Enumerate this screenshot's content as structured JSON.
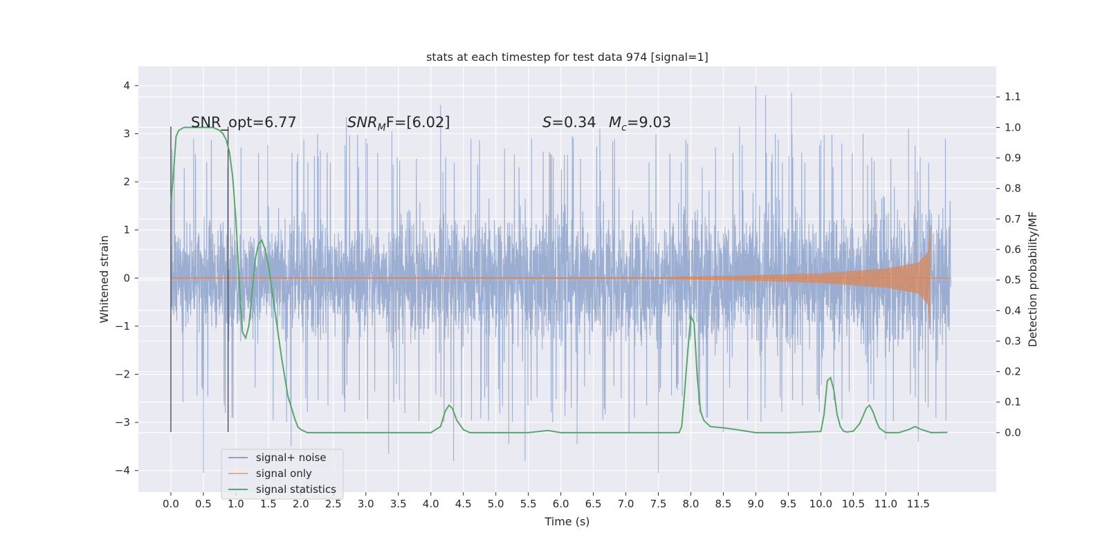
{
  "chart_data": {
    "type": "line",
    "title": "stats at each timestep for test data 974 [signal=1]",
    "xlabel": "Time (s)",
    "ylabel_left": "Whitened strain",
    "ylabel_right": "Detection probability/MF",
    "xlim": [
      -0.5,
      12.7
    ],
    "ylim_left": [
      -4.45,
      4.4
    ],
    "ylim_right": [
      -0.195,
      1.2
    ],
    "xticks": [
      0.0,
      0.5,
      1.0,
      1.5,
      2.0,
      2.5,
      3.0,
      3.5,
      4.0,
      4.5,
      5.0,
      5.5,
      6.0,
      6.5,
      7.0,
      7.5,
      8.0,
      8.5,
      9.0,
      9.5,
      10.0,
      10.5,
      11.0,
      11.5
    ],
    "xtick_labels": [
      "0.0",
      "0.5",
      "1.0",
      "1.5",
      "2.0",
      "2.5",
      "3.0",
      "3.5",
      "4.0",
      "4.5",
      "5.0",
      "5.5",
      "6.0",
      "6.5",
      "7.0",
      "7.5",
      "8.0",
      "8.5",
      "9.0",
      "9.5",
      "10.0",
      "10.5",
      "11.0",
      "11.5"
    ],
    "yticks_left": [
      -4,
      -3,
      -2,
      -1,
      0,
      1,
      2,
      3,
      4
    ],
    "ytick_labels_left": [
      "−4",
      "−3",
      "−2",
      "−1",
      "0",
      "1",
      "2",
      "3",
      "4"
    ],
    "yticks_right": [
      0.0,
      0.1,
      0.2,
      0.3,
      0.4,
      0.5,
      0.6,
      0.7,
      0.8,
      0.9,
      1.0,
      1.1
    ],
    "ytick_labels_right": [
      "0.0",
      "0.1",
      "0.2",
      "0.3",
      "0.4",
      "0.5",
      "0.6",
      "0.7",
      "0.8",
      "0.9",
      "1.0",
      "1.1"
    ],
    "grid": true,
    "legend_position": "lower-left",
    "annotations": {
      "snr_opt": "SNR_opt=6.77",
      "snr_mf_main": "SNR",
      "snr_mf_sub": "M",
      "snr_mf_rest": "F=[6.02]",
      "s_label": "S",
      "s_value": "=0.34",
      "mc_label": "M",
      "mc_sub": "c",
      "mc_value": "=9.03"
    },
    "vlines": [
      {
        "x": 0.0,
        "y_range": [
          -3.2,
          3.15
        ]
      },
      {
        "x": 0.88,
        "y_range": [
          -3.2,
          3.15
        ]
      }
    ],
    "series": [
      {
        "name": "signal+ noise",
        "color": "#4c72b0",
        "axis": "left",
        "x_range": [
          0.0,
          12.0
        ],
        "envelope_low": [
          -1.6,
          -2.2
        ],
        "envelope_high": [
          1.6,
          2.2
        ],
        "peaks": [
          [
            0.0,
            -2.8
          ],
          [
            0.35,
            2.9
          ],
          [
            0.5,
            -4.05
          ],
          [
            1.85,
            -3.5
          ],
          [
            2.3,
            2.65
          ],
          [
            2.7,
            3.35
          ],
          [
            3.0,
            2.9
          ],
          [
            3.35,
            -3.65
          ],
          [
            3.4,
            3.05
          ],
          [
            3.6,
            -2.8
          ],
          [
            4.15,
            3.6
          ],
          [
            4.35,
            -3.8
          ],
          [
            5.2,
            -3.45
          ],
          [
            5.45,
            -3.8
          ],
          [
            5.55,
            2.9
          ],
          [
            6.25,
            -3.45
          ],
          [
            6.6,
            3.1
          ],
          [
            7.05,
            -3.2
          ],
          [
            7.5,
            -4.05
          ],
          [
            7.95,
            2.8
          ],
          [
            8.5,
            -3.2
          ],
          [
            8.75,
            3.15
          ],
          [
            9.0,
            4.0
          ],
          [
            9.15,
            3.8
          ],
          [
            9.3,
            3.0
          ],
          [
            9.55,
            3.85
          ],
          [
            10.65,
            3.0
          ],
          [
            11.0,
            -3.35
          ],
          [
            11.35,
            3.1
          ],
          [
            11.5,
            -3.4
          ]
        ]
      },
      {
        "name": "signal only",
        "color": "#dd8452",
        "axis": "left",
        "x_range": [
          0.0,
          11.68
        ],
        "amplitude": [
          [
            0.0,
            0.01
          ],
          [
            7.5,
            0.02
          ],
          [
            9.0,
            0.06
          ],
          [
            10.0,
            0.1
          ],
          [
            11.0,
            0.2
          ],
          [
            11.5,
            0.32
          ],
          [
            11.65,
            0.55
          ],
          [
            11.68,
            1.1
          ]
        ]
      },
      {
        "name": "signal statistics",
        "color": "#55a868",
        "axis": "right",
        "x": [
          0.0,
          0.04,
          0.08,
          0.12,
          0.2,
          0.3,
          0.5,
          0.65,
          0.75,
          0.8,
          0.85,
          0.9,
          0.95,
          1.0,
          1.05,
          1.1,
          1.15,
          1.2,
          1.25,
          1.3,
          1.35,
          1.4,
          1.45,
          1.5,
          1.6,
          1.7,
          1.8,
          1.9,
          1.95,
          2.0,
          2.1,
          2.3,
          2.5,
          2.8,
          3.0,
          3.5,
          4.0,
          4.15,
          4.22,
          4.28,
          4.33,
          4.4,
          4.5,
          4.6,
          5.0,
          5.5,
          5.8,
          6.0,
          6.5,
          7.0,
          7.5,
          7.82,
          7.86,
          7.9,
          7.95,
          8.0,
          8.05,
          8.1,
          8.15,
          8.2,
          8.3,
          8.5,
          8.7,
          9.0,
          9.5,
          10.0,
          10.05,
          10.1,
          10.15,
          10.2,
          10.25,
          10.3,
          10.35,
          10.4,
          10.5,
          10.6,
          10.7,
          10.75,
          10.8,
          10.85,
          10.9,
          11.0,
          11.2,
          11.35,
          11.45,
          11.55,
          11.7,
          11.95
        ],
        "values": [
          0.75,
          0.85,
          0.97,
          0.99,
          1.0,
          1.0,
          1.0,
          1.0,
          0.99,
          0.98,
          0.96,
          0.92,
          0.84,
          0.7,
          0.5,
          0.33,
          0.31,
          0.35,
          0.46,
          0.57,
          0.62,
          0.63,
          0.6,
          0.55,
          0.4,
          0.25,
          0.12,
          0.05,
          0.02,
          0.01,
          0.0,
          0.0,
          0.0,
          0.0,
          0.0,
          0.0,
          0.0,
          0.02,
          0.07,
          0.09,
          0.08,
          0.04,
          0.01,
          0.0,
          0.0,
          0.0,
          0.007,
          0.0,
          0.0,
          0.0,
          0.0,
          0.0,
          0.02,
          0.12,
          0.26,
          0.38,
          0.36,
          0.18,
          0.07,
          0.04,
          0.02,
          0.016,
          0.01,
          0.0,
          0.0,
          0.004,
          0.06,
          0.17,
          0.18,
          0.14,
          0.06,
          0.02,
          0.005,
          0.002,
          0.005,
          0.03,
          0.08,
          0.09,
          0.07,
          0.04,
          0.015,
          0.0,
          0.0,
          0.01,
          0.02,
          0.01,
          0.0,
          0.001
        ]
      }
    ]
  }
}
